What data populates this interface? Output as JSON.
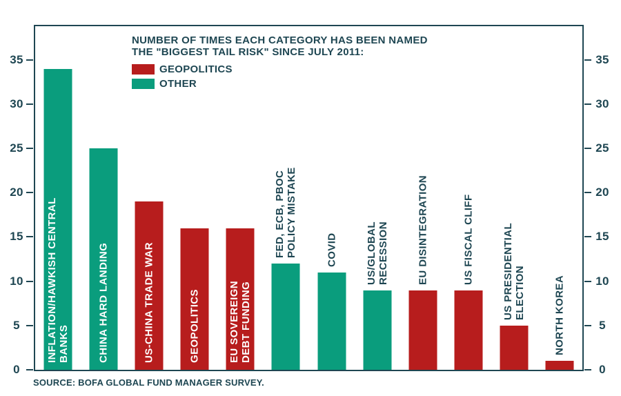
{
  "chart_data": {
    "type": "bar",
    "title_lines": [
      "NUMBER OF TIMES EACH CATEGORY HAS BEEN NAMED",
      "THE \"BIGGEST TAIL RISK\" SINCE JULY 2011:"
    ],
    "title": "NUMBER OF TIMES EACH CATEGORY HAS BEEN NAMED THE \"BIGGEST TAIL RISK\" SINCE JULY 2011:",
    "legend": [
      {
        "label": "GEOPOLITICS",
        "color": "#b71d1d"
      },
      {
        "label": "OTHER",
        "color": "#0a9d7d"
      }
    ],
    "legend_position": "top-inside",
    "grid": false,
    "categories": [
      "INFLATION/HAWKISH CENTRAL BANKS",
      "CHINA HARD LANDING",
      "US-CHINA TRADE WAR",
      "GEOPOLITICS",
      "EU SOVEREIGN DEBT FUNDING",
      "FED, ECB, PBOC POLICY MISTAKE",
      "COVID",
      "US/GLOBAL RECESSION",
      "EU DISINTEGRATION",
      "US FISCAL CLIFF",
      "US PRESIDENTIAL ELECTION",
      "NORTH KOREA"
    ],
    "values": [
      34,
      25,
      19,
      16,
      16,
      12,
      11,
      9,
      9,
      9,
      5,
      1
    ],
    "groups": [
      "OTHER",
      "OTHER",
      "GEOPOLITICS",
      "GEOPOLITICS",
      "GEOPOLITICS",
      "OTHER",
      "OTHER",
      "OTHER",
      "GEOPOLITICS",
      "GEOPOLITICS",
      "GEOPOLITICS",
      "GEOPOLITICS"
    ],
    "label_lines": [
      [
        "INFLATION/HAWKISH CENTRAL",
        "BANKS"
      ],
      [
        "CHINA HARD LANDING"
      ],
      [
        "US-CHINA TRADE WAR"
      ],
      [
        "GEOPOLITICS"
      ],
      [
        "EU SOVEREIGN",
        "DEBT FUNDING"
      ],
      [
        "FED, ECB, PBOC",
        "POLICY MISTAKE"
      ],
      [
        "COVID"
      ],
      [
        "US/GLOBAL",
        "RECESSION"
      ],
      [
        "EU DISINTEGRATION"
      ],
      [
        "US FISCAL CLIFF"
      ],
      [
        "US PRESIDENTIAL",
        "ELECTION"
      ],
      [
        "NORTH KOREA"
      ]
    ],
    "yticks": [
      0,
      5,
      10,
      15,
      20,
      25,
      30,
      35
    ],
    "ylim": [
      0,
      39
    ],
    "xlabel": "",
    "ylabel": "",
    "colors": {
      "geopolitics_red": "#b71d1d",
      "other_teal": "#0a9d7d",
      "axis_and_text": "#1e4652"
    },
    "source": "SOURCE: BOFA GLOBAL FUND MANAGER SURVEY."
  }
}
